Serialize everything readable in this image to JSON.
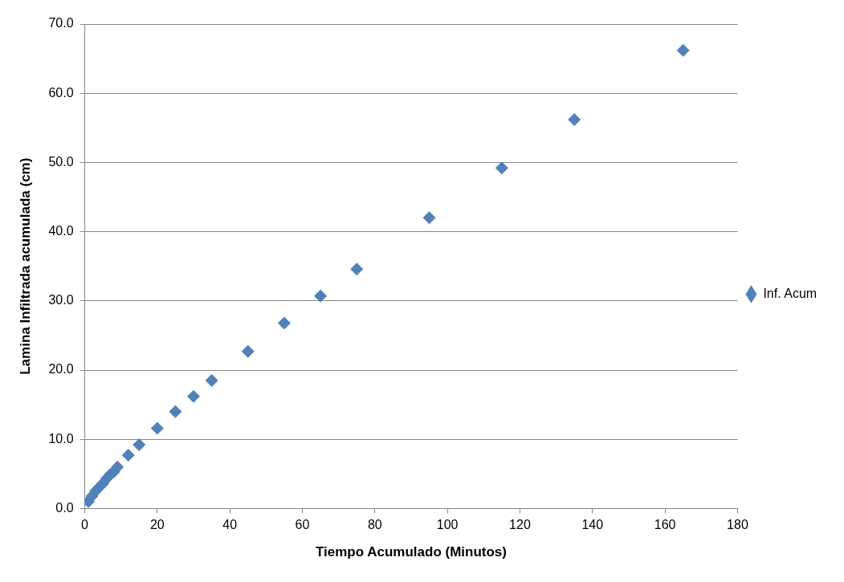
{
  "chart_data": {
    "type": "scatter",
    "xlabel": "Tiempo Acumulado (Minutos)",
    "ylabel": "Lamina Infiltrada acumulada (cm)",
    "xlim": [
      0,
      180
    ],
    "xticks": [
      0,
      20,
      40,
      60,
      80,
      100,
      120,
      140,
      160,
      180
    ],
    "ylim": [
      0,
      70
    ],
    "yticks": [
      {
        "value": 0,
        "label": "0.0"
      },
      {
        "value": 10,
        "label": "10.0"
      },
      {
        "value": 20,
        "label": "20.0"
      },
      {
        "value": 30,
        "label": "30.0"
      },
      {
        "value": 40,
        "label": "40.0"
      },
      {
        "value": 50,
        "label": "50.0"
      },
      {
        "value": 60,
        "label": "60.0"
      },
      {
        "value": 70,
        "label": "70.0"
      }
    ],
    "grid": "y",
    "legend": "right",
    "marker": "diamond",
    "series": [
      {
        "name": "Inf. Acum",
        "color": "#4f81bd",
        "x": [
          1,
          2,
          3,
          4,
          5,
          6,
          7,
          8,
          9,
          12,
          15,
          20,
          25,
          30,
          35,
          45,
          55,
          65,
          75,
          95,
          115,
          135,
          165
        ],
        "values": [
          1.0,
          1.8,
          2.5,
          3.1,
          3.6,
          4.3,
          4.9,
          5.3,
          6.0,
          7.7,
          9.2,
          11.6,
          14.0,
          16.2,
          18.5,
          22.7,
          26.8,
          30.7,
          34.6,
          42.0,
          49.2,
          56.2,
          66.2
        ]
      }
    ]
  }
}
